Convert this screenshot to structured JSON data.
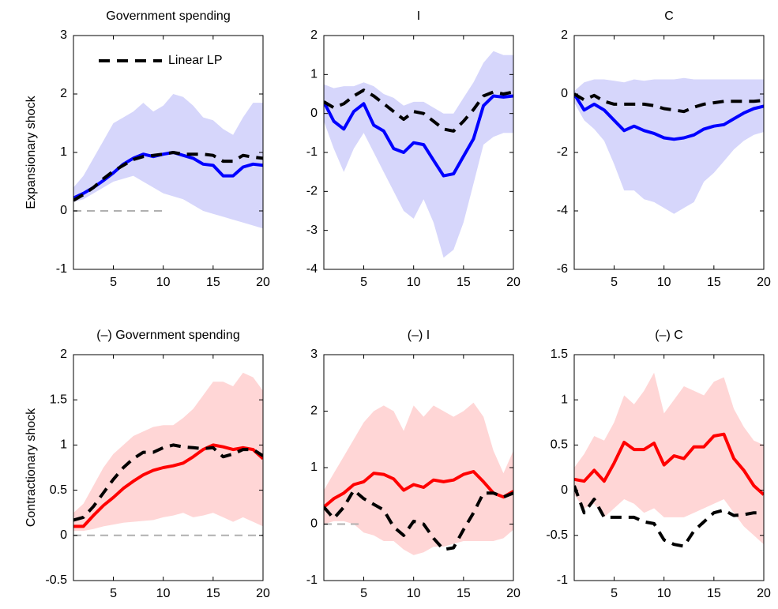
{
  "chart_data": [
    {
      "type": "line",
      "title": "Government spending",
      "ylabel": "Expansionary shock",
      "x": [
        1,
        2,
        3,
        4,
        5,
        6,
        7,
        8,
        9,
        10,
        11,
        12,
        13,
        14,
        15,
        16,
        17,
        18,
        19,
        20
      ],
      "xlim": [
        1,
        20
      ],
      "xticks": [
        5,
        10,
        15,
        20
      ],
      "ylim": [
        -1,
        3
      ],
      "yticks": [
        -1,
        0,
        1,
        2,
        3
      ],
      "band": {
        "color": "#d6d6fb",
        "upper": [
          0.4,
          0.6,
          0.9,
          1.2,
          1.5,
          1.6,
          1.7,
          1.85,
          1.7,
          1.8,
          2.0,
          1.95,
          1.8,
          1.6,
          1.55,
          1.4,
          1.3,
          1.6,
          1.85,
          1.85
        ],
        "lower": [
          0.15,
          0.2,
          0.3,
          0.4,
          0.5,
          0.55,
          0.6,
          0.5,
          0.4,
          0.3,
          0.25,
          0.2,
          0.1,
          0.0,
          -0.05,
          -0.1,
          -0.15,
          -0.2,
          -0.25,
          -0.3
        ]
      },
      "zero_line": {
        "value": 0,
        "x": [
          1,
          10
        ],
        "color": "#b0b0b0"
      },
      "legend": "top-left",
      "series": [
        {
          "color": "#0000ff",
          "style": "solid",
          "values": [
            0.22,
            0.3,
            0.4,
            0.52,
            0.65,
            0.8,
            0.9,
            0.97,
            0.93,
            0.97,
            1.0,
            0.95,
            0.9,
            0.8,
            0.78,
            0.6,
            0.6,
            0.75,
            0.8,
            0.78
          ]
        },
        {
          "name": "Linear LP",
          "color": "#000000",
          "style": "dashed",
          "values": [
            0.18,
            0.28,
            0.4,
            0.55,
            0.68,
            0.78,
            0.88,
            0.93,
            0.95,
            0.97,
            1.0,
            0.97,
            0.97,
            0.97,
            0.95,
            0.85,
            0.85,
            0.95,
            0.92,
            0.9
          ]
        }
      ]
    },
    {
      "type": "line",
      "title": "I",
      "x": [
        1,
        2,
        3,
        4,
        5,
        6,
        7,
        8,
        9,
        10,
        11,
        12,
        13,
        14,
        15,
        16,
        17,
        18,
        19,
        20
      ],
      "xlim": [
        1,
        20
      ],
      "xticks": [
        5,
        10,
        15,
        20
      ],
      "ylim": [
        -4,
        2
      ],
      "yticks": [
        -4,
        -3,
        -2,
        -1,
        0,
        1,
        2
      ],
      "band": {
        "color": "#d6d6fb",
        "upper": [
          0.75,
          0.65,
          0.7,
          0.7,
          0.8,
          0.7,
          0.5,
          0.4,
          0.2,
          0.3,
          0.3,
          0.15,
          0.0,
          0.0,
          0.4,
          0.8,
          1.3,
          1.6,
          1.5,
          1.5
        ],
        "lower": [
          -0.2,
          -0.9,
          -1.5,
          -0.9,
          -0.5,
          -1.0,
          -1.5,
          -2.0,
          -2.5,
          -2.7,
          -2.2,
          -2.8,
          -3.7,
          -3.5,
          -2.8,
          -1.8,
          -0.8,
          -0.6,
          -0.5,
          -0.5
        ]
      },
      "series": [
        {
          "color": "#0000ff",
          "style": "solid",
          "values": [
            0.3,
            -0.2,
            -0.4,
            0.05,
            0.25,
            -0.3,
            -0.45,
            -0.9,
            -1.0,
            -0.75,
            -0.8,
            -1.2,
            -1.6,
            -1.55,
            -1.1,
            -0.65,
            0.2,
            0.45,
            0.42,
            0.45
          ]
        },
        {
          "color": "#000000",
          "style": "dashed",
          "values": [
            0.3,
            0.15,
            0.25,
            0.45,
            0.6,
            0.45,
            0.25,
            0.05,
            -0.15,
            0.05,
            0.0,
            -0.2,
            -0.4,
            -0.45,
            -0.2,
            0.1,
            0.45,
            0.55,
            0.5,
            0.55
          ]
        }
      ]
    },
    {
      "type": "line",
      "title": "C",
      "x": [
        1,
        2,
        3,
        4,
        5,
        6,
        7,
        8,
        9,
        10,
        11,
        12,
        13,
        14,
        15,
        16,
        17,
        18,
        19,
        20
      ],
      "xlim": [
        1,
        20
      ],
      "xticks": [
        5,
        10,
        15,
        20
      ],
      "ylim": [
        -6,
        2
      ],
      "yticks": [
        -6,
        -4,
        -2,
        0,
        2
      ],
      "band": {
        "color": "#d6d6fb",
        "upper": [
          0.1,
          0.4,
          0.5,
          0.5,
          0.45,
          0.4,
          0.5,
          0.45,
          0.5,
          0.5,
          0.5,
          0.55,
          0.5,
          0.5,
          0.5,
          0.5,
          0.5,
          0.5,
          0.5,
          0.5
        ],
        "lower": [
          -0.3,
          -0.9,
          -1.2,
          -1.6,
          -2.4,
          -3.3,
          -3.3,
          -3.6,
          -3.7,
          -3.9,
          -4.1,
          -3.9,
          -3.7,
          -3.0,
          -2.7,
          -2.3,
          -1.9,
          -1.6,
          -1.4,
          -1.3
        ]
      },
      "series": [
        {
          "color": "#0000ff",
          "style": "solid",
          "values": [
            0,
            -0.55,
            -0.35,
            -0.55,
            -0.9,
            -1.25,
            -1.1,
            -1.25,
            -1.35,
            -1.5,
            -1.55,
            -1.5,
            -1.4,
            -1.2,
            -1.1,
            -1.05,
            -0.85,
            -0.65,
            -0.5,
            -0.42
          ]
        },
        {
          "color": "#000000",
          "style": "dashed",
          "values": [
            0,
            -0.2,
            -0.05,
            -0.25,
            -0.35,
            -0.35,
            -0.35,
            -0.35,
            -0.4,
            -0.5,
            -0.55,
            -0.6,
            -0.45,
            -0.35,
            -0.3,
            -0.25,
            -0.25,
            -0.25,
            -0.25,
            -0.22
          ]
        }
      ]
    },
    {
      "type": "line",
      "title": "(–) Government spending",
      "ylabel": "Contractionary shock",
      "x": [
        1,
        2,
        3,
        4,
        5,
        6,
        7,
        8,
        9,
        10,
        11,
        12,
        13,
        14,
        15,
        16,
        17,
        18,
        19,
        20
      ],
      "xlim": [
        1,
        20
      ],
      "xticks": [
        5,
        10,
        15,
        20
      ],
      "ylim": [
        -0.5,
        2
      ],
      "yticks": [
        -0.5,
        0,
        0.5,
        1,
        1.5,
        2
      ],
      "band": {
        "color": "#ffd6d6",
        "upper": [
          0.25,
          0.35,
          0.55,
          0.75,
          0.9,
          1.0,
          1.1,
          1.15,
          1.2,
          1.22,
          1.22,
          1.3,
          1.4,
          1.55,
          1.7,
          1.7,
          1.65,
          1.8,
          1.75,
          1.6
        ],
        "lower": [
          0.05,
          0.05,
          0.07,
          0.1,
          0.12,
          0.14,
          0.15,
          0.16,
          0.17,
          0.2,
          0.22,
          0.25,
          0.2,
          0.22,
          0.25,
          0.2,
          0.15,
          0.2,
          0.15,
          0.1
        ]
      },
      "zero_line": {
        "value": 0,
        "x": [
          1,
          20
        ],
        "color": "#b0b0b0"
      },
      "series": [
        {
          "color": "#ff0000",
          "style": "solid",
          "values": [
            0.1,
            0.1,
            0.22,
            0.33,
            0.42,
            0.52,
            0.6,
            0.67,
            0.72,
            0.75,
            0.77,
            0.8,
            0.87,
            0.95,
            1.0,
            0.98,
            0.95,
            0.97,
            0.95,
            0.85
          ]
        },
        {
          "color": "#000000",
          "style": "dashed",
          "values": [
            0.17,
            0.2,
            0.32,
            0.47,
            0.62,
            0.75,
            0.85,
            0.92,
            0.92,
            0.97,
            1.0,
            0.98,
            0.97,
            0.96,
            0.97,
            0.87,
            0.9,
            0.95,
            0.95,
            0.88
          ]
        }
      ]
    },
    {
      "type": "line",
      "title": "(–) I",
      "x": [
        1,
        2,
        3,
        4,
        5,
        6,
        7,
        8,
        9,
        10,
        11,
        12,
        13,
        14,
        15,
        16,
        17,
        18,
        19,
        20
      ],
      "xlim": [
        1,
        20
      ],
      "xticks": [
        5,
        10,
        15,
        20
      ],
      "ylim": [
        -1,
        3
      ],
      "yticks": [
        -1,
        0,
        1,
        2,
        3
      ],
      "band": {
        "color": "#ffd6d6",
        "upper": [
          0.6,
          0.9,
          1.2,
          1.5,
          1.8,
          2.0,
          2.1,
          2.0,
          1.65,
          2.1,
          1.9,
          2.1,
          2.0,
          1.9,
          2.0,
          2.15,
          1.9,
          1.3,
          0.9,
          1.3
        ],
        "lower": [
          0.0,
          0.05,
          0.05,
          0.0,
          -0.15,
          -0.2,
          -0.3,
          -0.3,
          -0.45,
          -0.55,
          -0.5,
          -0.4,
          -0.4,
          -0.35,
          -0.3,
          -0.3,
          -0.3,
          -0.3,
          -0.25,
          -0.1
        ]
      },
      "zero_line": {
        "value": 0,
        "x": [
          1,
          5
        ],
        "color": "#b0b0b0"
      },
      "series": [
        {
          "color": "#ff0000",
          "style": "solid",
          "values": [
            0.3,
            0.45,
            0.55,
            0.7,
            0.75,
            0.9,
            0.88,
            0.8,
            0.6,
            0.7,
            0.65,
            0.78,
            0.75,
            0.78,
            0.88,
            0.93,
            0.75,
            0.55,
            0.48,
            0.58
          ]
        },
        {
          "color": "#000000",
          "style": "dashed",
          "values": [
            0.3,
            0.1,
            0.3,
            0.6,
            0.45,
            0.35,
            0.25,
            -0.05,
            -0.2,
            0.05,
            0.0,
            -0.25,
            -0.45,
            -0.42,
            -0.1,
            0.2,
            0.55,
            0.55,
            0.48,
            0.55
          ]
        }
      ]
    },
    {
      "type": "line",
      "title": "(–) C",
      "x": [
        1,
        2,
        3,
        4,
        5,
        6,
        7,
        8,
        9,
        10,
        11,
        12,
        13,
        14,
        15,
        16,
        17,
        18,
        19,
        20
      ],
      "xlim": [
        1,
        20
      ],
      "xticks": [
        5,
        10,
        15,
        20
      ],
      "ylim": [
        -1,
        1.5
      ],
      "yticks": [
        -1,
        -0.5,
        0,
        0.5,
        1,
        1.5
      ],
      "band": {
        "color": "#ffd6d6",
        "upper": [
          0.25,
          0.4,
          0.6,
          0.55,
          0.75,
          1.05,
          0.95,
          1.1,
          1.3,
          0.85,
          1.0,
          1.15,
          1.1,
          1.05,
          1.2,
          1.25,
          0.9,
          0.7,
          0.55,
          0.5
        ],
        "lower": [
          -0.05,
          -0.2,
          -0.15,
          -0.3,
          -0.2,
          -0.1,
          -0.15,
          -0.25,
          -0.2,
          -0.3,
          -0.3,
          -0.3,
          -0.25,
          -0.2,
          -0.15,
          -0.1,
          -0.25,
          -0.4,
          -0.5,
          -0.6
        ]
      },
      "series": [
        {
          "color": "#ff0000",
          "style": "solid",
          "values": [
            0.12,
            0.1,
            0.22,
            0.1,
            0.3,
            0.53,
            0.45,
            0.45,
            0.52,
            0.28,
            0.38,
            0.35,
            0.48,
            0.48,
            0.6,
            0.62,
            0.35,
            0.22,
            0.05,
            -0.05
          ]
        },
        {
          "color": "#000000",
          "style": "dashed",
          "values": [
            0.05,
            -0.25,
            -0.1,
            -0.3,
            -0.3,
            -0.3,
            -0.3,
            -0.35,
            -0.37,
            -0.55,
            -0.6,
            -0.62,
            -0.45,
            -0.35,
            -0.25,
            -0.22,
            -0.28,
            -0.27,
            -0.25,
            -0.25
          ]
        }
      ]
    }
  ]
}
